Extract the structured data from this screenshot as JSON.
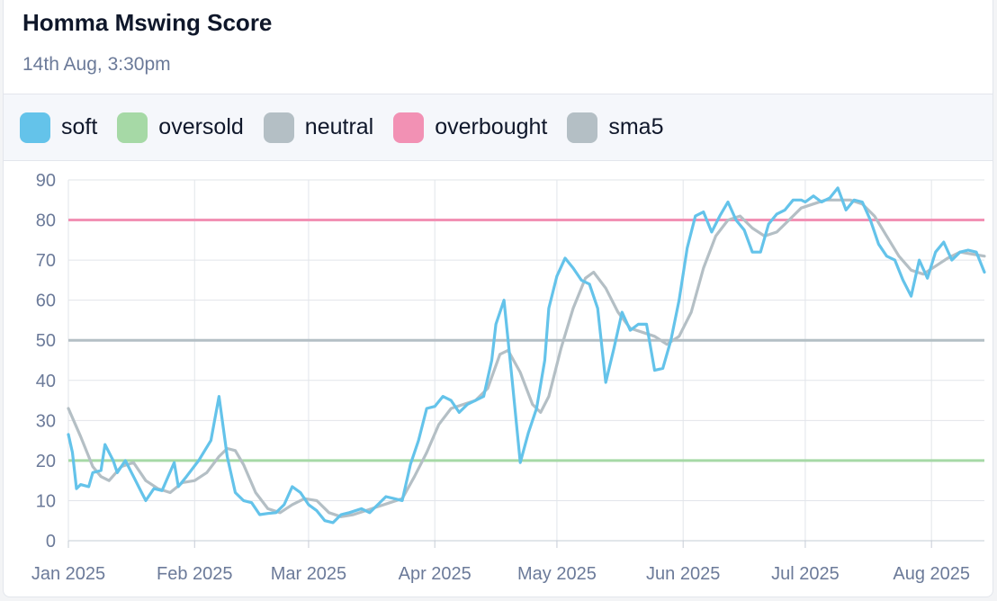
{
  "header": {
    "title": "Homma Mswing Score",
    "subtitle": "14th Aug, 3:30pm"
  },
  "legend": [
    {
      "label": "soft",
      "color": "#64c3ea"
    },
    {
      "label": "oversold",
      "color": "#a6d9a6"
    },
    {
      "label": "neutral",
      "color": "#b4bfc5"
    },
    {
      "label": "overbought",
      "color": "#f291b4"
    },
    {
      "label": "sma5",
      "color": "#b4bfc5"
    }
  ],
  "chart_data": {
    "type": "line",
    "ylim": [
      0,
      90
    ],
    "yticks": [
      0,
      10,
      20,
      30,
      40,
      50,
      60,
      70,
      80,
      90
    ],
    "xlim": [
      "2025-01-01",
      "2025-08-14"
    ],
    "xticks": [
      {
        "date": "2025-01-01",
        "label": "Jan 2025"
      },
      {
        "date": "2025-02-01",
        "label": "Feb 2025"
      },
      {
        "date": "2025-03-01",
        "label": "Mar 2025"
      },
      {
        "date": "2025-04-01",
        "label": "Apr 2025"
      },
      {
        "date": "2025-05-01",
        "label": "May 2025"
      },
      {
        "date": "2025-06-01",
        "label": "Jun 2025"
      },
      {
        "date": "2025-07-01",
        "label": "Jul 2025"
      },
      {
        "date": "2025-08-01",
        "label": "Aug 2025"
      }
    ],
    "reference_lines": [
      {
        "name": "oversold",
        "value": 20,
        "color": "#a6d9a6"
      },
      {
        "name": "neutral",
        "value": 50,
        "color": "#b4bfc5"
      },
      {
        "name": "overbought",
        "value": 80,
        "color": "#f291b4"
      }
    ],
    "series": [
      {
        "name": "soft",
        "color": "#64c3ea",
        "points": [
          [
            "2025-01-01",
            26.5
          ],
          [
            "2025-01-02",
            22
          ],
          [
            "2025-01-03",
            13
          ],
          [
            "2025-01-04",
            14
          ],
          [
            "2025-01-06",
            13.5
          ],
          [
            "2025-01-07",
            17
          ],
          [
            "2025-01-09",
            17.5
          ],
          [
            "2025-01-10",
            24
          ],
          [
            "2025-01-12",
            20
          ],
          [
            "2025-01-13",
            17
          ],
          [
            "2025-01-15",
            20
          ],
          [
            "2025-01-17",
            16
          ],
          [
            "2025-01-19",
            12
          ],
          [
            "2025-01-20",
            10
          ],
          [
            "2025-01-22",
            13
          ],
          [
            "2025-01-24",
            12.5
          ],
          [
            "2025-01-27",
            19.5
          ],
          [
            "2025-01-28",
            13.5
          ],
          [
            "2025-01-30",
            16
          ],
          [
            "2025-02-02",
            20
          ],
          [
            "2025-02-05",
            25
          ],
          [
            "2025-02-07",
            36
          ],
          [
            "2025-02-09",
            21
          ],
          [
            "2025-02-11",
            12
          ],
          [
            "2025-02-13",
            10
          ],
          [
            "2025-02-15",
            9.5
          ],
          [
            "2025-02-17",
            6.5
          ],
          [
            "2025-02-19",
            6.8
          ],
          [
            "2025-02-21",
            7
          ],
          [
            "2025-02-23",
            9
          ],
          [
            "2025-02-25",
            13.5
          ],
          [
            "2025-02-27",
            12
          ],
          [
            "2025-03-01",
            9
          ],
          [
            "2025-03-03",
            7.5
          ],
          [
            "2025-03-05",
            5
          ],
          [
            "2025-03-07",
            4.5
          ],
          [
            "2025-03-09",
            6.5
          ],
          [
            "2025-03-11",
            7
          ],
          [
            "2025-03-14",
            8
          ],
          [
            "2025-03-16",
            7
          ],
          [
            "2025-03-18",
            9
          ],
          [
            "2025-03-20",
            11
          ],
          [
            "2025-03-22",
            10.5
          ],
          [
            "2025-03-24",
            10
          ],
          [
            "2025-03-26",
            19
          ],
          [
            "2025-03-28",
            25
          ],
          [
            "2025-03-30",
            33
          ],
          [
            "2025-04-01",
            33.5
          ],
          [
            "2025-04-03",
            36
          ],
          [
            "2025-04-05",
            35
          ],
          [
            "2025-04-07",
            32
          ],
          [
            "2025-04-09",
            34
          ],
          [
            "2025-04-11",
            35
          ],
          [
            "2025-04-13",
            36
          ],
          [
            "2025-04-15",
            45
          ],
          [
            "2025-04-16",
            54
          ],
          [
            "2025-04-18",
            60
          ],
          [
            "2025-04-20",
            40
          ],
          [
            "2025-04-22",
            19.5
          ],
          [
            "2025-04-24",
            27
          ],
          [
            "2025-04-26",
            33
          ],
          [
            "2025-04-28",
            45
          ],
          [
            "2025-04-29",
            58
          ],
          [
            "2025-05-01",
            66
          ],
          [
            "2025-05-03",
            70.5
          ],
          [
            "2025-05-05",
            68
          ],
          [
            "2025-05-07",
            65
          ],
          [
            "2025-05-09",
            64
          ],
          [
            "2025-05-11",
            58
          ],
          [
            "2025-05-13",
            39.5
          ],
          [
            "2025-05-15",
            48
          ],
          [
            "2025-05-17",
            57
          ],
          [
            "2025-05-19",
            52.5
          ],
          [
            "2025-05-21",
            54
          ],
          [
            "2025-05-23",
            54
          ],
          [
            "2025-05-25",
            42.5
          ],
          [
            "2025-05-27",
            43
          ],
          [
            "2025-05-29",
            50
          ],
          [
            "2025-05-31",
            60
          ],
          [
            "2025-06-02",
            73
          ],
          [
            "2025-06-04",
            81
          ],
          [
            "2025-06-06",
            82
          ],
          [
            "2025-06-08",
            77
          ],
          [
            "2025-06-10",
            81
          ],
          [
            "2025-06-12",
            84.5
          ],
          [
            "2025-06-14",
            80
          ],
          [
            "2025-06-16",
            77.5
          ],
          [
            "2025-06-18",
            72
          ],
          [
            "2025-06-20",
            72
          ],
          [
            "2025-06-22",
            79
          ],
          [
            "2025-06-24",
            81.5
          ],
          [
            "2025-06-26",
            82.5
          ],
          [
            "2025-06-28",
            85
          ],
          [
            "2025-06-30",
            85
          ],
          [
            "2025-07-01",
            84.5
          ],
          [
            "2025-07-03",
            86
          ],
          [
            "2025-07-05",
            84.5
          ],
          [
            "2025-07-07",
            85.5
          ],
          [
            "2025-07-09",
            88
          ],
          [
            "2025-07-11",
            82.5
          ],
          [
            "2025-07-13",
            85
          ],
          [
            "2025-07-15",
            84.5
          ],
          [
            "2025-07-17",
            80
          ],
          [
            "2025-07-19",
            74
          ],
          [
            "2025-07-21",
            71
          ],
          [
            "2025-07-23",
            70
          ],
          [
            "2025-07-25",
            65
          ],
          [
            "2025-07-27",
            61
          ],
          [
            "2025-07-29",
            70
          ],
          [
            "2025-07-31",
            65.5
          ],
          [
            "2025-08-02",
            72
          ],
          [
            "2025-08-04",
            74.5
          ],
          [
            "2025-08-06",
            70
          ],
          [
            "2025-08-08",
            72
          ],
          [
            "2025-08-10",
            72.5
          ],
          [
            "2025-08-12",
            72
          ],
          [
            "2025-08-14",
            67
          ]
        ]
      },
      {
        "name": "sma5",
        "color": "#b4bfc5",
        "points": [
          [
            "2025-01-01",
            33
          ],
          [
            "2025-01-04",
            26
          ],
          [
            "2025-01-07",
            18.5
          ],
          [
            "2025-01-09",
            16
          ],
          [
            "2025-01-11",
            15
          ],
          [
            "2025-01-14",
            18.5
          ],
          [
            "2025-01-17",
            19.5
          ],
          [
            "2025-01-20",
            15
          ],
          [
            "2025-01-23",
            13
          ],
          [
            "2025-01-26",
            12
          ],
          [
            "2025-01-29",
            14.5
          ],
          [
            "2025-02-01",
            15
          ],
          [
            "2025-02-04",
            17
          ],
          [
            "2025-02-07",
            21
          ],
          [
            "2025-02-09",
            23
          ],
          [
            "2025-02-11",
            22.5
          ],
          [
            "2025-02-13",
            19
          ],
          [
            "2025-02-16",
            12
          ],
          [
            "2025-02-19",
            8
          ],
          [
            "2025-02-22",
            7
          ],
          [
            "2025-02-25",
            9
          ],
          [
            "2025-02-28",
            10.5
          ],
          [
            "2025-03-03",
            10
          ],
          [
            "2025-03-06",
            7
          ],
          [
            "2025-03-09",
            6
          ],
          [
            "2025-03-12",
            6.5
          ],
          [
            "2025-03-15",
            7.5
          ],
          [
            "2025-03-18",
            8.5
          ],
          [
            "2025-03-21",
            9.5
          ],
          [
            "2025-03-24",
            10.5
          ],
          [
            "2025-03-27",
            16
          ],
          [
            "2025-03-30",
            22
          ],
          [
            "2025-04-02",
            29
          ],
          [
            "2025-04-05",
            33
          ],
          [
            "2025-04-08",
            34
          ],
          [
            "2025-04-11",
            35
          ],
          [
            "2025-04-14",
            38
          ],
          [
            "2025-04-17",
            46.5
          ],
          [
            "2025-04-19",
            47.5
          ],
          [
            "2025-04-22",
            42
          ],
          [
            "2025-04-25",
            34
          ],
          [
            "2025-04-27",
            32
          ],
          [
            "2025-04-29",
            36
          ],
          [
            "2025-05-02",
            48
          ],
          [
            "2025-05-05",
            58
          ],
          [
            "2025-05-08",
            65.5
          ],
          [
            "2025-05-10",
            67
          ],
          [
            "2025-05-13",
            63
          ],
          [
            "2025-05-16",
            57
          ],
          [
            "2025-05-19",
            53
          ],
          [
            "2025-05-22",
            52
          ],
          [
            "2025-05-25",
            51
          ],
          [
            "2025-05-28",
            49
          ],
          [
            "2025-05-31",
            51
          ],
          [
            "2025-06-03",
            57
          ],
          [
            "2025-06-06",
            68
          ],
          [
            "2025-06-09",
            76
          ],
          [
            "2025-06-12",
            80
          ],
          [
            "2025-06-15",
            81
          ],
          [
            "2025-06-18",
            78
          ],
          [
            "2025-06-21",
            76
          ],
          [
            "2025-06-24",
            77
          ],
          [
            "2025-06-27",
            80
          ],
          [
            "2025-06-30",
            83
          ],
          [
            "2025-07-03",
            84
          ],
          [
            "2025-07-06",
            85
          ],
          [
            "2025-07-09",
            85
          ],
          [
            "2025-07-12",
            85
          ],
          [
            "2025-07-15",
            84
          ],
          [
            "2025-07-18",
            81
          ],
          [
            "2025-07-21",
            76
          ],
          [
            "2025-07-24",
            71
          ],
          [
            "2025-07-27",
            67.5
          ],
          [
            "2025-07-30",
            66.5
          ],
          [
            "2025-08-02",
            68.5
          ],
          [
            "2025-08-05",
            70.5
          ],
          [
            "2025-08-08",
            72
          ],
          [
            "2025-08-11",
            71.5
          ],
          [
            "2025-08-14",
            71
          ]
        ]
      }
    ]
  }
}
